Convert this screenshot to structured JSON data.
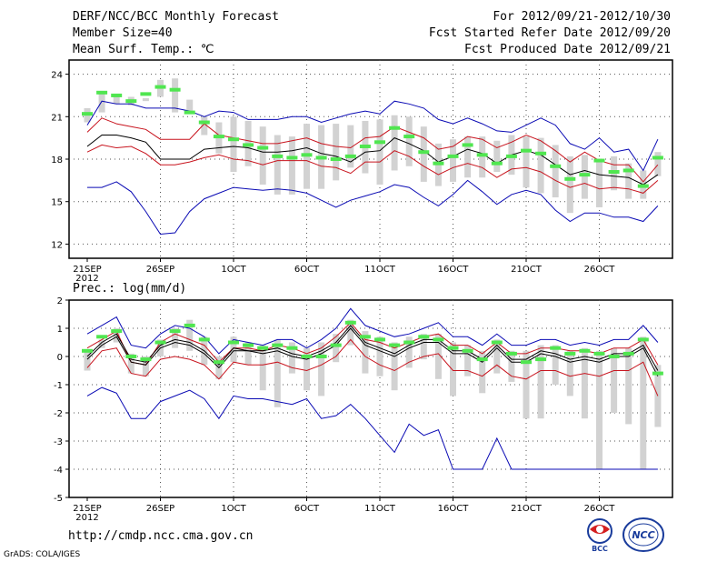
{
  "header": {
    "title": "DERF/NCC/BCC Monthly Forecast",
    "member_size": "Member Size=40",
    "variable": "Mean Surf. Temp.: ℃",
    "period": "For 2012/09/21-2012/10/30",
    "started": "Fcst Started Refer Date 2012/09/20",
    "produced": "Fcst Produced Date 2012/09/21"
  },
  "footer": {
    "url": "http://cmdp.ncc.cma.gov.cn",
    "credit": "GrADS: COLA/IGES",
    "logo_left": "BCC",
    "logo_right": "NCC"
  },
  "colors": {
    "ensemble_mean": "#000000",
    "spread_band": "#c8141e",
    "extremes": "#0a0ab4",
    "box": "#d2d2d2",
    "observed": "#50e650"
  },
  "chart_data": [
    {
      "type": "line",
      "title": "Mean Surf. Temp.: ℃",
      "x_labels": [
        "21SEP",
        "26SEP",
        "1OCT",
        "6OCT",
        "11OCT",
        "16OCT",
        "21OCT",
        "26OCT"
      ],
      "x_year": "2012",
      "days": 40,
      "ylim": [
        11,
        25
      ],
      "yticks": [
        12,
        15,
        18,
        21,
        24
      ],
      "series": [
        {
          "name": "max",
          "values": [
            20.4,
            22.1,
            21.9,
            21.9,
            21.6,
            21.6,
            21.6,
            21.4,
            21.0,
            21.4,
            21.3,
            20.8,
            20.8,
            20.8,
            21.0,
            21.0,
            20.6,
            20.9,
            21.2,
            21.4,
            21.2,
            22.1,
            21.9,
            21.6,
            20.8,
            20.5,
            20.9,
            20.5,
            20.0,
            19.9,
            20.4,
            20.9,
            20.4,
            19.1,
            18.7,
            19.5,
            18.5,
            18.7,
            17.2,
            19.4
          ]
        },
        {
          "name": "upper",
          "values": [
            19.9,
            20.9,
            20.5,
            20.3,
            20.1,
            19.4,
            19.4,
            19.4,
            20.5,
            19.7,
            19.5,
            19.3,
            19.1,
            19.1,
            19.3,
            19.5,
            19.1,
            18.9,
            18.8,
            19.5,
            19.6,
            20.3,
            19.9,
            19.5,
            18.7,
            18.9,
            19.6,
            19.4,
            18.8,
            19.2,
            19.7,
            19.3,
            18.6,
            17.8,
            18.5,
            17.9,
            17.6,
            17.6,
            16.4,
            17.6
          ]
        },
        {
          "name": "mean",
          "values": [
            18.9,
            19.7,
            19.7,
            19.5,
            19.2,
            18.0,
            18.0,
            18.0,
            18.7,
            18.8,
            18.9,
            18.8,
            18.5,
            18.5,
            18.6,
            18.8,
            18.4,
            18.2,
            17.8,
            18.5,
            18.6,
            19.5,
            19.1,
            18.6,
            17.8,
            18.2,
            18.7,
            18.4,
            17.7,
            18.3,
            18.6,
            18.3,
            17.6,
            16.9,
            17.2,
            16.9,
            16.8,
            16.7,
            16.2,
            16.9
          ]
        },
        {
          "name": "lower",
          "values": [
            18.5,
            19.0,
            18.8,
            18.9,
            18.4,
            17.6,
            17.6,
            17.8,
            18.1,
            18.3,
            18.0,
            17.9,
            17.6,
            17.9,
            17.9,
            17.9,
            17.5,
            17.4,
            17.0,
            17.8,
            17.8,
            18.6,
            18.2,
            17.5,
            16.9,
            17.4,
            17.7,
            17.4,
            16.7,
            17.3,
            17.4,
            17.1,
            16.5,
            16.0,
            16.3,
            15.9,
            16.0,
            15.9,
            15.6,
            16.5
          ]
        },
        {
          "name": "min",
          "values": [
            16.0,
            16.0,
            16.4,
            15.7,
            14.3,
            12.7,
            12.8,
            14.3,
            15.2,
            15.6,
            16.0,
            15.9,
            15.8,
            15.9,
            15.8,
            15.6,
            15.1,
            14.6,
            15.1,
            15.4,
            15.7,
            16.2,
            16.0,
            15.3,
            14.7,
            15.5,
            16.5,
            15.7,
            14.8,
            15.5,
            15.8,
            15.5,
            14.4,
            13.6,
            14.2,
            14.2,
            13.9,
            13.9,
            13.6,
            14.7
          ]
        },
        {
          "name": "box_high",
          "values": [
            21.6,
            22.6,
            22.4,
            22.4,
            22.3,
            23.6,
            23.7,
            22.2,
            21.0,
            20.6,
            21.0,
            20.7,
            20.3,
            19.7,
            19.6,
            20.5,
            20.4,
            20.5,
            20.4,
            20.7,
            20.8,
            21.1,
            21.0,
            20.3,
            19.1,
            19.4,
            19.6,
            19.6,
            19.3,
            19.7,
            19.6,
            19.5,
            19.0,
            18.2,
            18.3,
            17.8,
            18.2,
            17.7,
            17.2,
            18.5
          ]
        },
        {
          "name": "box_low",
          "values": [
            20.6,
            21.3,
            21.9,
            21.8,
            22.1,
            22.4,
            21.3,
            21.2,
            19.7,
            18.4,
            17.1,
            17.5,
            16.2,
            15.5,
            15.5,
            15.9,
            15.9,
            16.5,
            17.4,
            17.0,
            16.2,
            17.2,
            17.5,
            16.4,
            16.1,
            16.4,
            16.7,
            16.7,
            17.1,
            16.9,
            16.0,
            15.6,
            15.3,
            14.2,
            15.2,
            14.6,
            15.8,
            15.2,
            15.2,
            16.8
          ]
        },
        {
          "name": "observed",
          "values": [
            21.2,
            22.7,
            22.5,
            22.1,
            22.6,
            23.1,
            22.9,
            21.3,
            20.6,
            19.6,
            19.4,
            19.0,
            18.8,
            18.2,
            18.1,
            18.3,
            18.1,
            18.0,
            18.2,
            18.9,
            19.2,
            20.2,
            19.6,
            18.5,
            17.7,
            18.2,
            19.0,
            18.3,
            17.7,
            18.2,
            18.6,
            18.4,
            17.5,
            16.6,
            16.9,
            17.9,
            17.1,
            17.2,
            16.1,
            18.1
          ]
        }
      ]
    },
    {
      "type": "line",
      "title": "Prec.: log(mm/d)",
      "x_labels": [
        "21SEP",
        "26SEP",
        "1OCT",
        "6OCT",
        "11OCT",
        "16OCT",
        "21OCT",
        "26OCT"
      ],
      "x_year": "2012",
      "days": 40,
      "ylim": [
        -5,
        2
      ],
      "yticks": [
        -5,
        -4,
        -3,
        -2,
        -1,
        0,
        1,
        2
      ],
      "series": [
        {
          "name": "max",
          "values": [
            0.8,
            1.1,
            1.4,
            0.4,
            0.3,
            0.8,
            1.1,
            1.0,
            0.7,
            0.1,
            0.6,
            0.5,
            0.4,
            0.6,
            0.6,
            0.3,
            0.6,
            1.0,
            1.7,
            1.1,
            0.9,
            0.7,
            0.8,
            1.0,
            1.2,
            0.7,
            0.7,
            0.4,
            0.8,
            0.4,
            0.4,
            0.6,
            0.6,
            0.4,
            0.5,
            0.4,
            0.6,
            0.6,
            1.1,
            0.5
          ]
        },
        {
          "name": "upper",
          "values": [
            0.3,
            0.6,
            0.9,
            -0.2,
            -0.3,
            0.5,
            0.8,
            0.6,
            0.4,
            -0.2,
            0.3,
            0.3,
            0.2,
            0.4,
            0.3,
            0.1,
            0.3,
            0.7,
            1.2,
            0.6,
            0.5,
            0.3,
            0.5,
            0.7,
            0.8,
            0.4,
            0.4,
            0.1,
            0.5,
            0.1,
            0.1,
            0.3,
            0.3,
            0.2,
            0.2,
            0.1,
            0.3,
            0.3,
            0.6,
            -0.3
          ]
        },
        {
          "name": "mean",
          "values": [
            0.0,
            0.5,
            0.8,
            -0.1,
            -0.2,
            0.4,
            0.6,
            0.5,
            0.2,
            -0.3,
            0.3,
            0.2,
            0.2,
            0.3,
            0.1,
            0.0,
            0.2,
            0.5,
            1.1,
            0.5,
            0.3,
            0.1,
            0.4,
            0.6,
            0.6,
            0.2,
            0.2,
            -0.1,
            0.4,
            -0.1,
            -0.1,
            0.2,
            0.1,
            -0.1,
            0.0,
            -0.1,
            0.1,
            0.1,
            0.4,
            -0.5
          ]
        },
        {
          "name": "lower",
          "values": [
            -0.1,
            0.4,
            0.7,
            -0.2,
            -0.3,
            0.3,
            0.5,
            0.4,
            0.1,
            -0.4,
            0.2,
            0.2,
            0.1,
            0.2,
            0.0,
            -0.1,
            0.1,
            0.4,
            1.0,
            0.4,
            0.2,
            0.0,
            0.3,
            0.5,
            0.5,
            0.1,
            0.1,
            -0.2,
            0.3,
            -0.2,
            -0.2,
            0.1,
            0.0,
            -0.2,
            -0.1,
            -0.2,
            0.0,
            0.0,
            0.3,
            -0.7
          ]
        },
        {
          "name": "min",
          "values": [
            -1.4,
            -1.1,
            -1.3,
            -2.2,
            -2.2,
            -1.6,
            -1.4,
            -1.2,
            -1.5,
            -2.2,
            -1.4,
            -1.5,
            -1.5,
            -1.6,
            -1.7,
            -1.5,
            -2.2,
            -2.1,
            -1.7,
            -2.2,
            -2.8,
            -3.4,
            -2.4,
            -2.8,
            -2.6,
            -4.0,
            -4.0,
            -4.0,
            -2.9,
            -4.0,
            -4.0,
            -4.0,
            -4.0,
            -4.0,
            -4.0,
            -4.0,
            -4.0,
            -4.0,
            -4.0,
            -4.0
          ]
        },
        {
          "name": "red_low",
          "values": [
            -0.4,
            0.2,
            0.3,
            -0.6,
            -0.7,
            -0.1,
            0.0,
            -0.1,
            -0.3,
            -0.8,
            -0.2,
            -0.3,
            -0.3,
            -0.2,
            -0.4,
            -0.5,
            -0.3,
            0.0,
            0.6,
            0.0,
            -0.3,
            -0.5,
            -0.2,
            0.0,
            0.1,
            -0.5,
            -0.5,
            -0.7,
            -0.3,
            -0.7,
            -0.8,
            -0.5,
            -0.5,
            -0.7,
            -0.6,
            -0.7,
            -0.5,
            -0.5,
            -0.2,
            -1.4
          ]
        },
        {
          "name": "box_high",
          "values": [
            0.2,
            0.6,
            1.0,
            0.1,
            0.0,
            0.6,
            1.0,
            1.3,
            0.7,
            0.0,
            0.7,
            0.5,
            0.4,
            0.6,
            0.5,
            0.3,
            0.5,
            0.8,
            1.3,
            0.9,
            0.7,
            0.5,
            0.7,
            0.8,
            0.8,
            0.5,
            0.4,
            0.2,
            0.6,
            0.2,
            0.2,
            0.4,
            0.4,
            0.2,
            0.3,
            0.2,
            0.3,
            0.3,
            0.7,
            -0.3
          ]
        },
        {
          "name": "box_low",
          "values": [
            -0.5,
            0.3,
            0.5,
            -0.6,
            -0.7,
            0.0,
            0.3,
            0.2,
            -0.3,
            -0.8,
            -0.2,
            -0.3,
            -1.2,
            -1.8,
            -0.6,
            -1.2,
            -1.4,
            -0.2,
            0.4,
            -0.6,
            -0.7,
            -1.2,
            -0.4,
            -0.1,
            -0.8,
            -1.4,
            -0.7,
            -1.3,
            -0.6,
            -0.9,
            -2.2,
            -2.2,
            -1.0,
            -1.4,
            -2.2,
            -4.0,
            -2.0,
            -2.4,
            -4.0,
            -2.5
          ]
        },
        {
          "name": "observed",
          "values": [
            0.2,
            0.7,
            0.9,
            0.0,
            -0.1,
            0.5,
            0.9,
            1.1,
            0.6,
            -0.2,
            0.5,
            0.4,
            0.3,
            0.4,
            0.3,
            0.0,
            0.0,
            0.4,
            1.2,
            0.7,
            0.6,
            0.4,
            0.5,
            0.7,
            0.6,
            0.3,
            0.2,
            -0.1,
            0.5,
            0.1,
            -0.2,
            -0.1,
            0.3,
            0.1,
            0.2,
            0.1,
            0.0,
            0.1,
            0.6,
            -0.6
          ]
        }
      ]
    }
  ]
}
